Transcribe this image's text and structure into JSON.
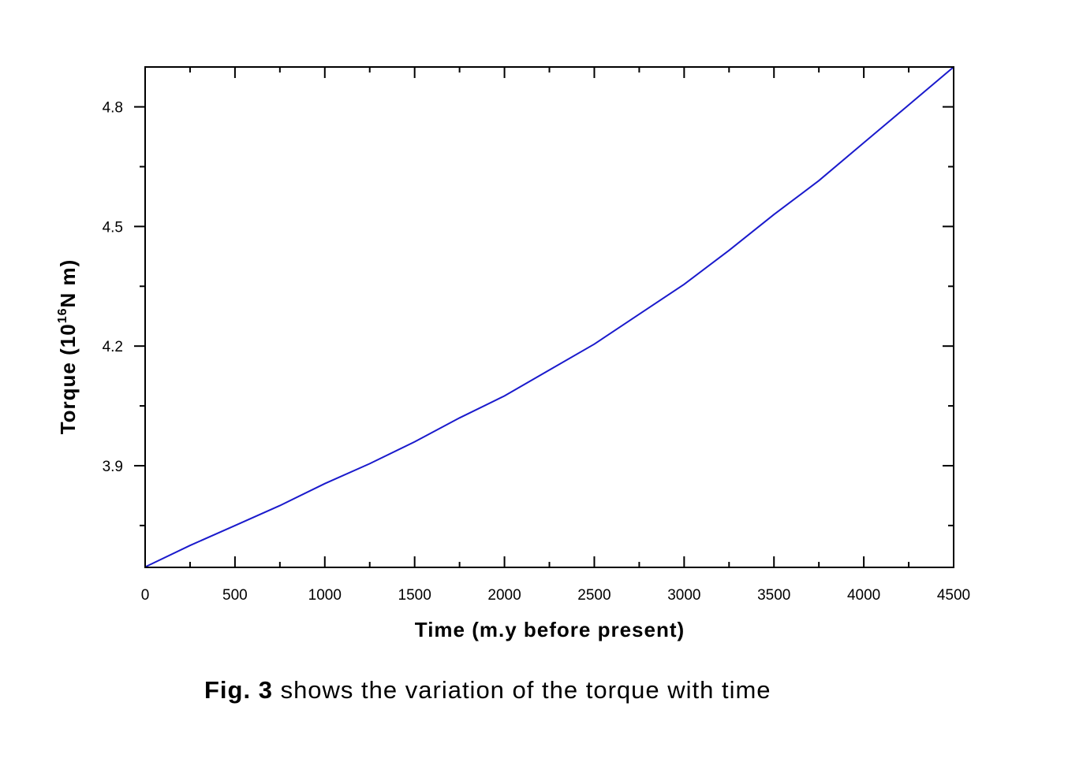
{
  "caption": {
    "bold_part": "Fig. 3",
    "rest": " shows the variation of the torque with time"
  },
  "chart_data": {
    "type": "line",
    "xlabel": "Time (m.y before present)",
    "ylabel_parts": {
      "before": "Torque (10",
      "sup": "16",
      "after": "N m)"
    },
    "xlim": [
      0,
      4500
    ],
    "ylim": [
      3.645,
      4.9
    ],
    "x_ticks": [
      0,
      500,
      1000,
      1500,
      2000,
      2500,
      3000,
      3500,
      4000,
      4500
    ],
    "y_ticks": [
      3.9,
      4.2,
      4.5,
      4.8
    ],
    "y_tick_labels": [
      "3.9",
      "4.2",
      "4.5",
      "4.8"
    ],
    "grid": false,
    "line_color": "#1a1acc",
    "series": [
      {
        "x": [
          0,
          250,
          500,
          750,
          1000,
          1250,
          1500,
          1750,
          2000,
          2250,
          2500,
          2750,
          3000,
          3250,
          3500,
          3750,
          4000,
          4250,
          4500
        ],
        "y": [
          3.646,
          3.7,
          3.75,
          3.8,
          3.855,
          3.905,
          3.96,
          4.02,
          4.075,
          4.14,
          4.205,
          4.28,
          4.355,
          4.44,
          4.53,
          4.615,
          4.71,
          4.805,
          4.9
        ]
      }
    ]
  }
}
